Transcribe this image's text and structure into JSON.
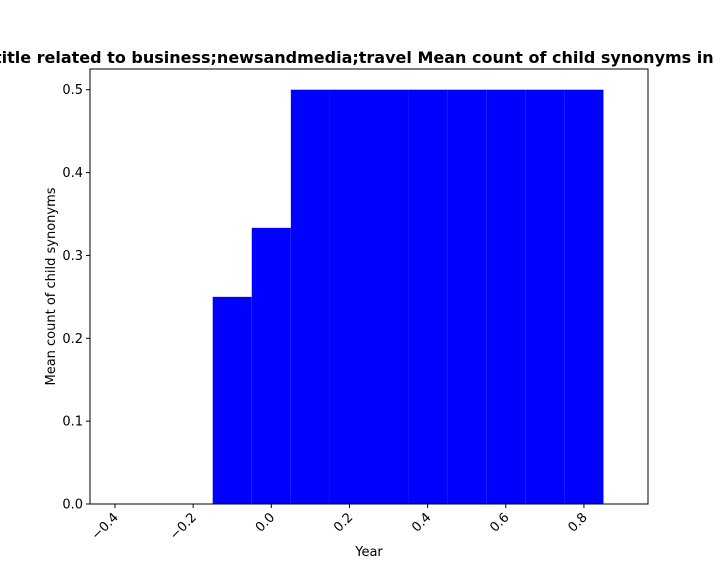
{
  "chart_data": {
    "type": "bar",
    "title": "Websites with title related to business;newsandmedia;travel Mean count of child synonyms in primary category",
    "xlabel": "Year",
    "ylabel": "Mean count of child synonyms",
    "xlim": [
      -0.464,
      0.964
    ],
    "ylim": [
      0.0,
      0.525
    ],
    "bars": [
      {
        "x": -0.4,
        "value": 0.0
      },
      {
        "x": -0.3,
        "value": 0.0
      },
      {
        "x": -0.2,
        "value": 0.0
      },
      {
        "x": -0.1,
        "value": 0.25
      },
      {
        "x": 0.0,
        "value": 0.3333
      },
      {
        "x": 0.1,
        "value": 0.5
      },
      {
        "x": 0.2,
        "value": 0.5
      },
      {
        "x": 0.3,
        "value": 0.5
      },
      {
        "x": 0.4,
        "value": 0.5
      },
      {
        "x": 0.5,
        "value": 0.5
      },
      {
        "x": 0.6,
        "value": 0.5
      },
      {
        "x": 0.7,
        "value": 0.5
      },
      {
        "x": 0.8,
        "value": 0.5
      }
    ],
    "bar_color": "#0000ff",
    "xticks": [
      "−0.4",
      "−0.2",
      "0.0",
      "0.2",
      "0.4",
      "0.6",
      "0.8"
    ],
    "yticks": [
      "0.0",
      "0.1",
      "0.2",
      "0.3",
      "0.4",
      "0.5"
    ],
    "grid": false,
    "legend": "none"
  }
}
